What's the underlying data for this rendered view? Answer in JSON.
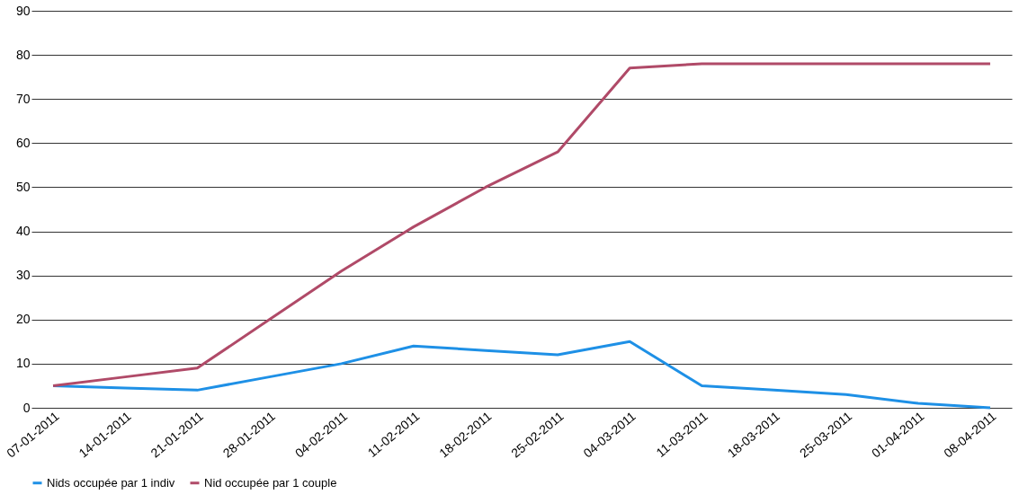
{
  "chart_data": {
    "type": "line",
    "categories": [
      "07-01-2011",
      "14-01-2011",
      "21-01-2011",
      "28-01-2011",
      "04-02-2011",
      "11-02-2011",
      "18-02-2011",
      "25-02-2011",
      "04-03-2011",
      "11-03-2011",
      "18-03-2011",
      "25-03-2011",
      "01-04-2011",
      "08-04-2011"
    ],
    "series": [
      {
        "name": "Nids occupée par 1 indiv",
        "color": "#1e90e6",
        "values": [
          5,
          4.5,
          4,
          7,
          10,
          14,
          13,
          12,
          15,
          5,
          4,
          3,
          1,
          0
        ]
      },
      {
        "name": "Nid occupée par 1 couple",
        "color": "#b04a68",
        "values": [
          5,
          7,
          9,
          20,
          31,
          41,
          50,
          58,
          77,
          78,
          78,
          78,
          78,
          78
        ]
      }
    ],
    "ylim": [
      0,
      90
    ],
    "yticks": [
      0,
      10,
      20,
      30,
      40,
      50,
      60,
      70,
      80,
      90
    ],
    "grid": "y",
    "legend": "bottom",
    "marker": "none",
    "line_style": "solid"
  }
}
